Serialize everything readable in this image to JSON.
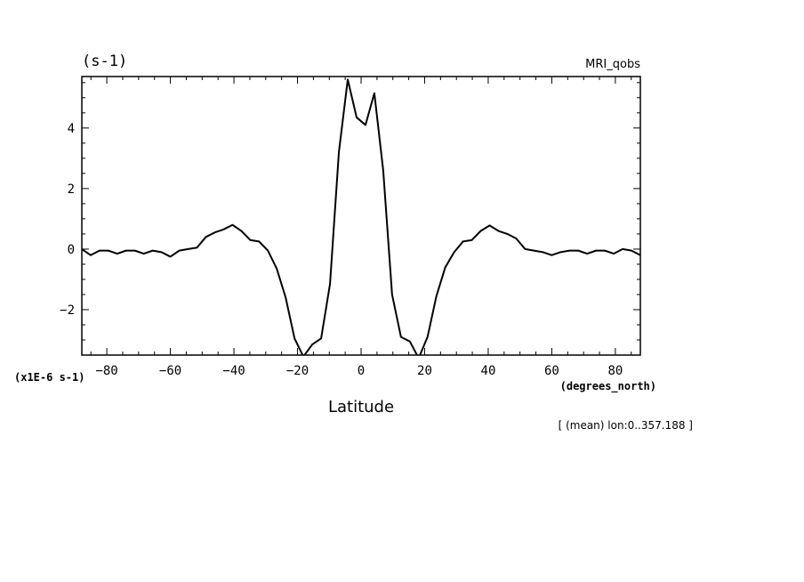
{
  "chart_data": {
    "type": "line",
    "title": "(s-1)",
    "dataset_label": "MRI_qobs",
    "xlabel": "Latitude",
    "x_units": "(degrees_north)",
    "y_scale_label": "(x1E-6 s-1)",
    "footnote": "[ (mean) lon:0..357.188 ]",
    "xlim": [
      -87.864,
      87.864
    ],
    "ylim": [
      -3.5,
      5.7
    ],
    "x_ticks": [
      -80,
      -60,
      -40,
      -20,
      0,
      20,
      40,
      60,
      80
    ],
    "x_tick_labels": [
      "−80",
      "−60",
      "−40",
      "−20",
      "0",
      "20",
      "40",
      "60",
      "80"
    ],
    "y_ticks": [
      -2,
      0,
      2,
      4
    ],
    "y_tick_labels": [
      "−2",
      "0",
      "2",
      "4"
    ],
    "grid": false,
    "series": [
      {
        "color": "#000000",
        "x": [
          -87.864,
          -85.097,
          -82.313,
          -79.526,
          -76.737,
          -73.948,
          -71.158,
          -68.368,
          -65.578,
          -62.789,
          -59.999,
          -57.209,
          -54.418,
          -51.628,
          -48.838,
          -46.048,
          -43.258,
          -40.468,
          -37.678,
          -34.888,
          -32.098,
          -29.308,
          -26.518,
          -23.728,
          -20.938,
          -18.148,
          -15.358,
          -12.568,
          -9.778,
          -6.988,
          -4.198,
          -1.408,
          1.382,
          4.172,
          6.962,
          9.752,
          12.542,
          15.332,
          18.122,
          20.912,
          23.702,
          26.492,
          29.282,
          32.072,
          34.862,
          37.652,
          40.442,
          43.232,
          46.022,
          48.812,
          51.602,
          54.392,
          57.182,
          59.972,
          62.762,
          65.552,
          68.342,
          71.132,
          73.922,
          76.712,
          79.502,
          82.292,
          85.082,
          87.864
        ],
        "y": [
          0.0,
          -0.2,
          -0.05,
          -0.05,
          -0.15,
          -0.05,
          -0.05,
          -0.15,
          -0.05,
          -0.1,
          -0.25,
          -0.05,
          0.0,
          0.05,
          0.4,
          0.55,
          0.65,
          0.8,
          0.6,
          0.3,
          0.25,
          -0.05,
          -0.65,
          -1.6,
          -2.95,
          -3.55,
          -3.15,
          -2.95,
          -1.15,
          3.2,
          5.6,
          4.35,
          4.1,
          5.15,
          2.6,
          -1.5,
          -2.9,
          -3.05,
          -3.6,
          -2.9,
          -1.55,
          -0.6,
          -0.1,
          0.25,
          0.3,
          0.6,
          0.78,
          0.6,
          0.5,
          0.35,
          0.0,
          -0.05,
          -0.1,
          -0.2,
          -0.1,
          -0.05,
          -0.05,
          -0.15,
          -0.05,
          -0.05,
          -0.15,
          0.0,
          -0.05,
          -0.2
        ]
      }
    ]
  }
}
